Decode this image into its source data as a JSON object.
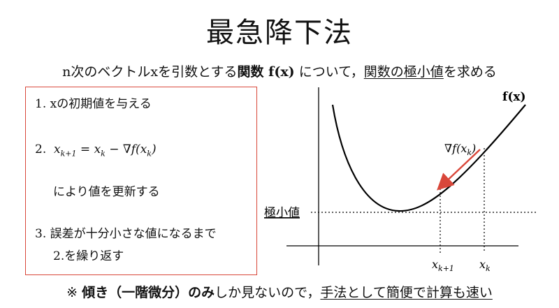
{
  "title": "最急降下法",
  "subtitle": {
    "part1": "n次のベクトルxを引数とする",
    "bold": "関数 f(x)",
    "part2": " について，",
    "underlined": "関数の極小値",
    "part3": "を求める"
  },
  "steps": {
    "step1": "1. xの初期値を与える",
    "step2_num": "2.",
    "step2_text": "により値を更新する",
    "step3": "3. 誤差が十分小さな値になるまで",
    "step3_cont": "2.を繰り返す"
  },
  "graph": {
    "curve_label": "f(x)",
    "gradient_label": "∇f(x",
    "min_label": "極小値",
    "xk1_label": "x",
    "xk_label": "x"
  },
  "footer": {
    "prefix": "※",
    "bold": "傾き（一階微分）のみ",
    "middle": "しか見ないので，",
    "underlined": "手法として簡便で計算も速い"
  },
  "colors": {
    "box_border": "#d9473a",
    "arrow": "#d9473a"
  }
}
